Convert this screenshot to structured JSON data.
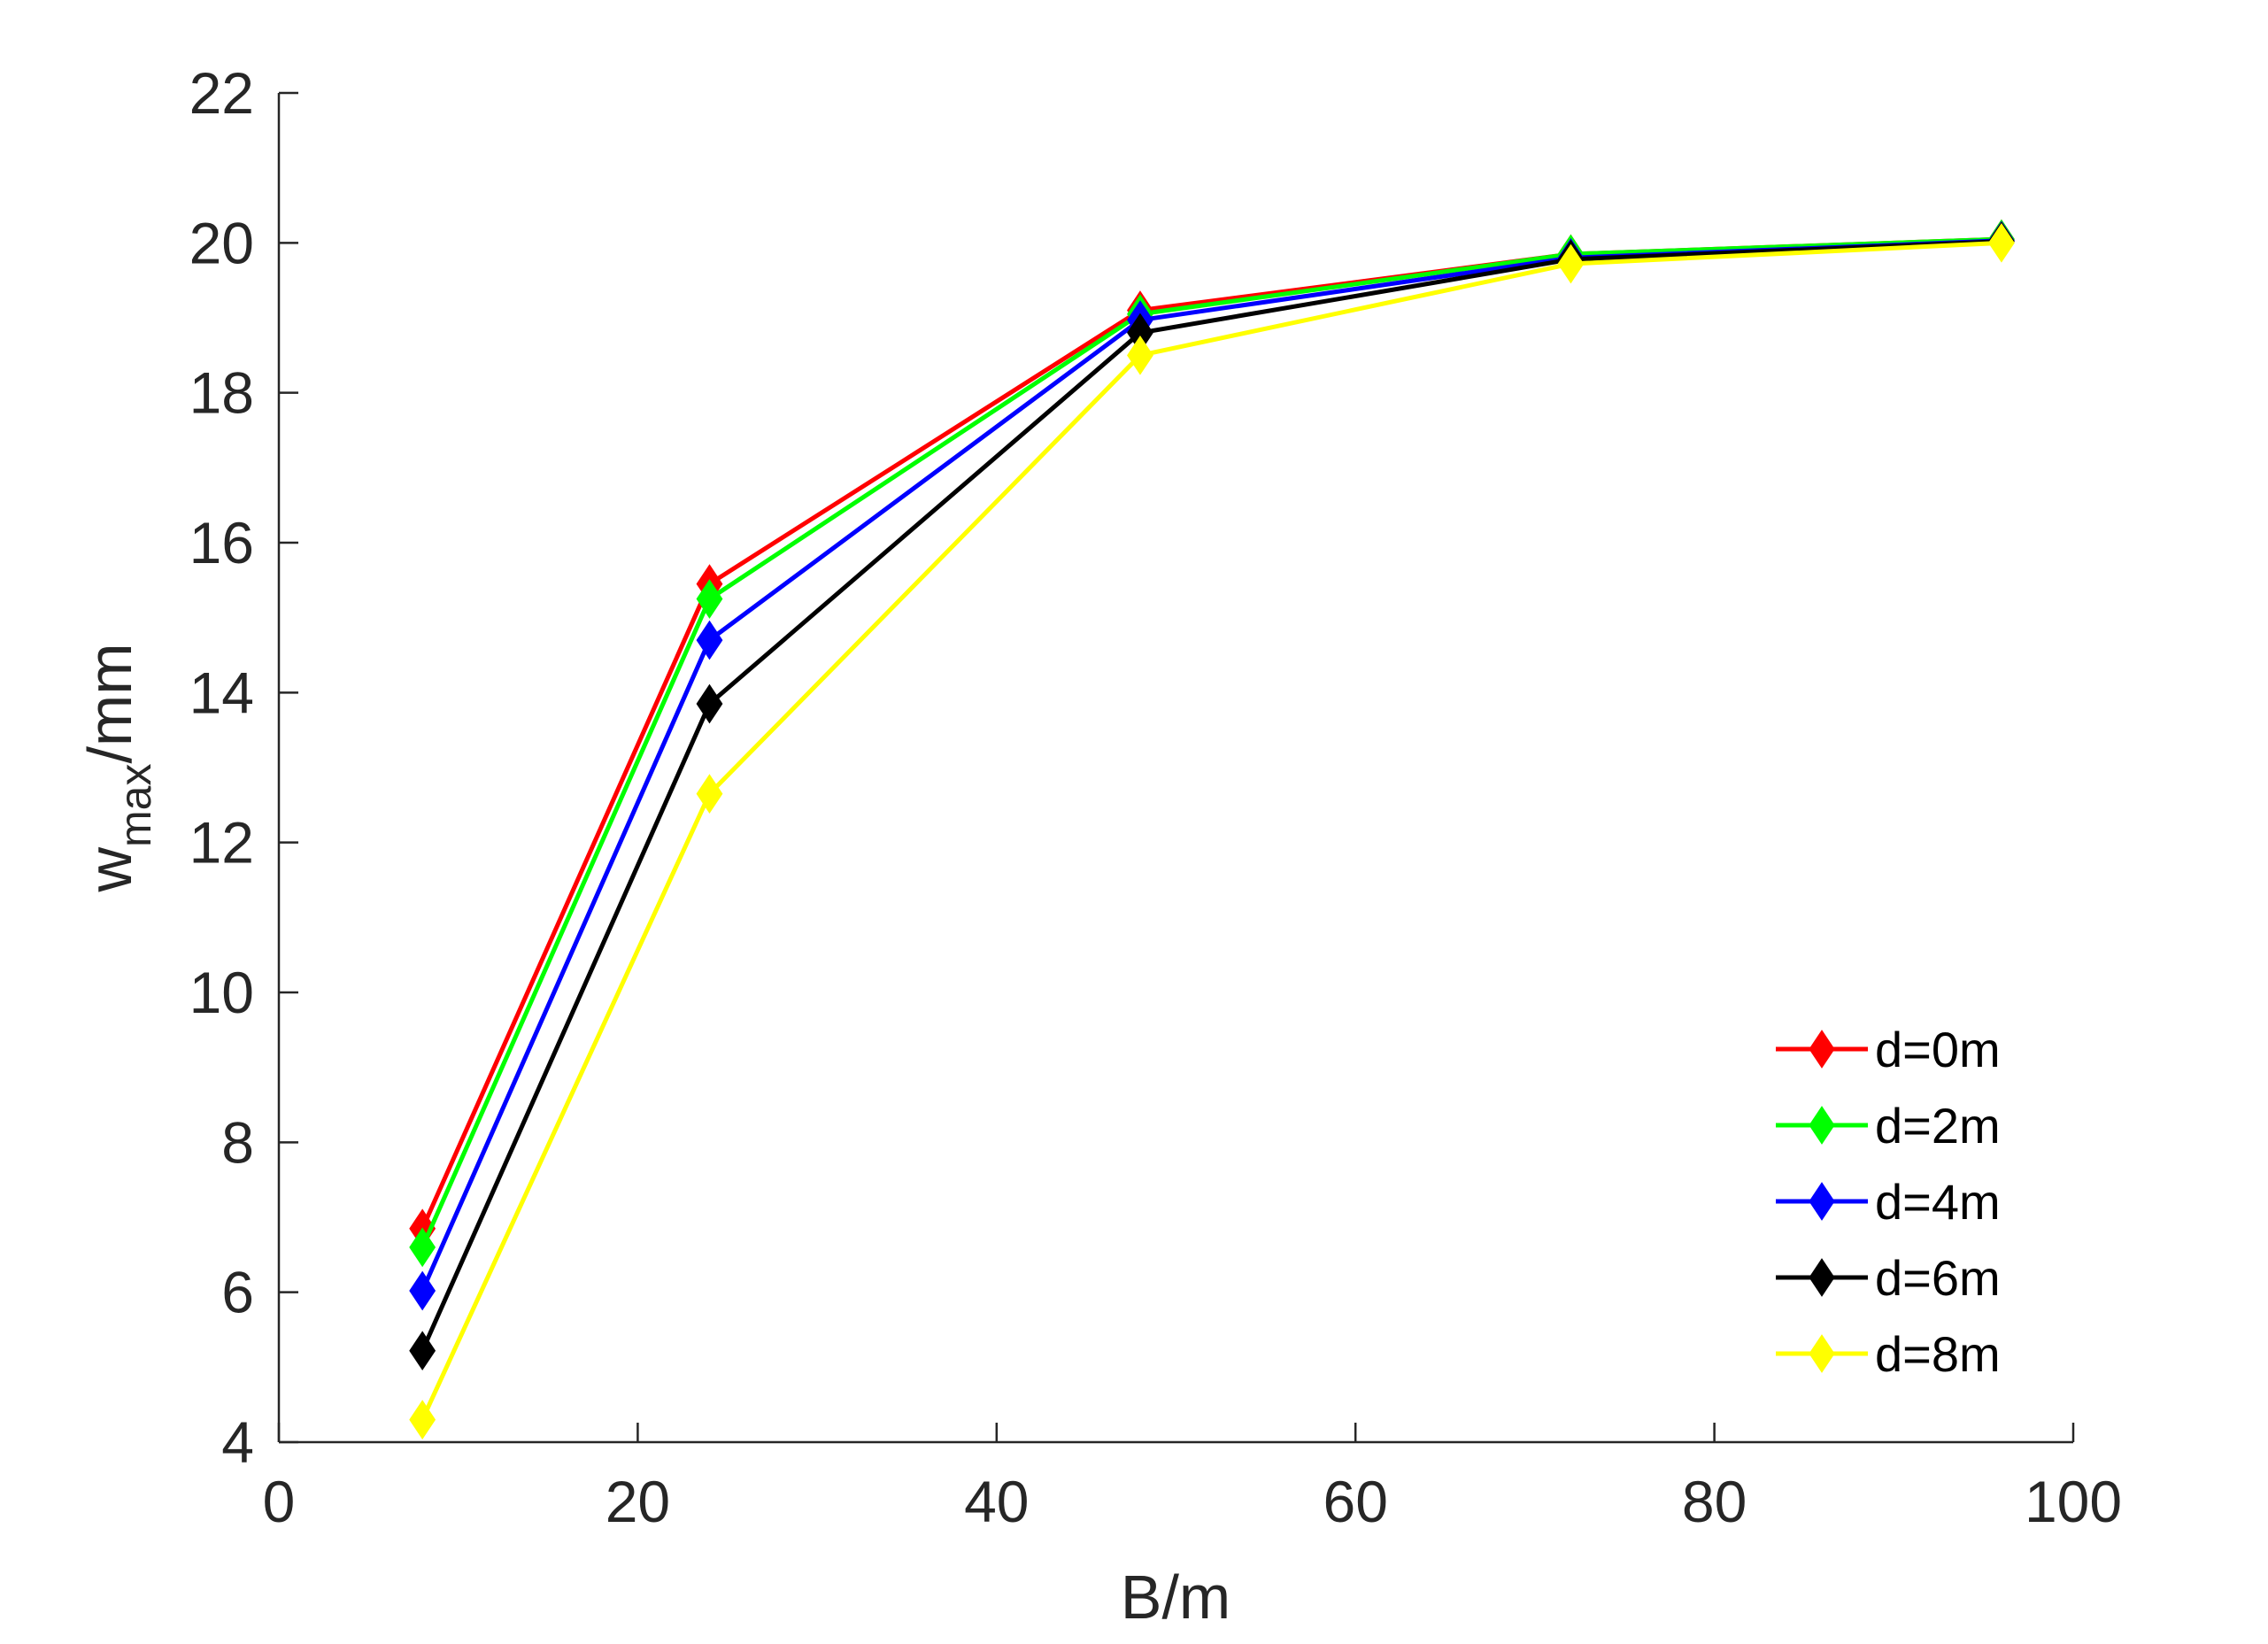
{
  "chart_data": {
    "type": "line",
    "title": "",
    "xlabel": "B/m",
    "ylabel": {
      "main": "w",
      "subscript": "max",
      "unit": "/mm"
    },
    "xlim": [
      0,
      100
    ],
    "ylim": [
      4,
      22
    ],
    "xticks": [
      0,
      20,
      40,
      60,
      80,
      100
    ],
    "yticks": [
      4,
      6,
      8,
      10,
      12,
      14,
      16,
      18,
      20,
      22
    ],
    "grid": false,
    "legend_position": "bottom-right",
    "marker": "diamond",
    "x": [
      8,
      24,
      48,
      72,
      96
    ],
    "series": [
      {
        "name": "d=0m",
        "color": "#ff0000",
        "values": [
          6.85,
          15.45,
          19.1,
          19.85,
          20.05
        ]
      },
      {
        "name": "d=2m",
        "color": "#00ff00",
        "values": [
          6.6,
          15.25,
          19.05,
          19.85,
          20.05
        ]
      },
      {
        "name": "d=4m",
        "color": "#0000ff",
        "values": [
          6.02,
          14.7,
          18.97,
          19.8,
          20.03
        ]
      },
      {
        "name": "d=6m",
        "color": "#000000",
        "values": [
          5.22,
          13.85,
          18.8,
          19.78,
          20.02
        ]
      },
      {
        "name": "d=8m",
        "color": "#ffff00",
        "values": [
          4.3,
          12.65,
          18.5,
          19.72,
          20.0
        ]
      }
    ]
  }
}
